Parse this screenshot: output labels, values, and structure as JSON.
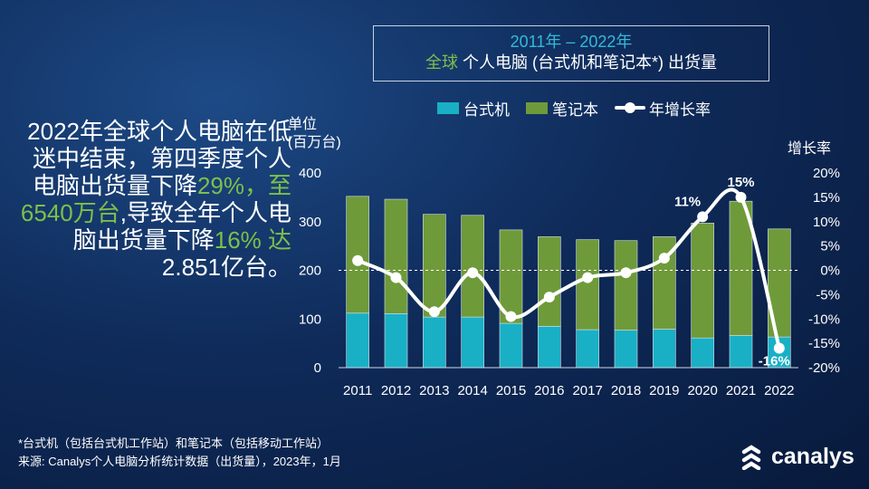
{
  "header": {
    "title_line1": "2011年 – 2022年",
    "title_line2_prefix": "全球",
    "title_line2_rest": " 个人电脑 (台式机和笔记本*) 出货量"
  },
  "headline": {
    "part1": "2022年全球个人电脑在低迷中结束，第四季度个人电脑出货量下降",
    "highlight1": "29%，至6540万台",
    "part2": ",导致全年个人电脑出货量下降",
    "highlight2": "16% 达",
    "part3": "2.851亿台。"
  },
  "footnotes": {
    "line1": "*台式机（包括台式机工作站）和笔记本（包括移动工作站）",
    "line2": "来源: Canalys个人电脑分析统计数据（出货量），2023年，1月"
  },
  "logo": {
    "text": "canalys"
  },
  "colors": {
    "desktop": "#19b0c6",
    "notebook": "#6f9a3a",
    "growth_line": "#ffffff",
    "title_accent": "#35b9d6",
    "highlight": "#7cc04b"
  },
  "chart_data": {
    "type": "bar",
    "stacked": true,
    "categories": [
      "2011",
      "2012",
      "2013",
      "2014",
      "2015",
      "2016",
      "2017",
      "2018",
      "2019",
      "2020",
      "2021",
      "2022"
    ],
    "series": [
      {
        "name": "台式机",
        "values": [
          112,
          111,
          104,
          104,
          91,
          85,
          78,
          77,
          79,
          61,
          66,
          63
        ]
      },
      {
        "name": "笔记本",
        "values": [
          240,
          235,
          211,
          209,
          192,
          184,
          185,
          184,
          190,
          236,
          276,
          222
        ]
      }
    ],
    "line_series": {
      "name": "年增长率",
      "values": [
        2,
        -1.5,
        -8.5,
        -0.5,
        -9.5,
        -5.5,
        -1.5,
        -0.5,
        2.5,
        11,
        15,
        -16
      ],
      "labels": [
        "",
        "",
        "",
        "",
        "",
        "",
        "",
        "",
        "",
        "11%",
        "15%",
        "-16%"
      ]
    },
    "legend": [
      "台式机",
      "笔记本",
      "年增长率"
    ],
    "ylabel": "单位\n(百万台)",
    "ylabel_line1": "单位",
    "ylabel_line2": "(百万台)",
    "y2label": "增长率",
    "ylim": [
      0,
      400
    ],
    "y_ticks": [
      "0",
      "100",
      "200",
      "300",
      "400"
    ],
    "y2lim": [
      -20,
      20
    ],
    "y2_ticks": [
      "-20%",
      "-15%",
      "-10%",
      "-5%",
      "0%",
      "5%",
      "10%",
      "15%",
      "20%"
    ],
    "legend_position": "top"
  }
}
